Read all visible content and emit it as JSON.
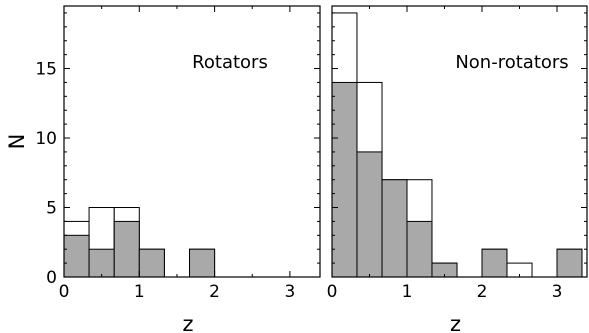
{
  "chart_data": [
    {
      "type": "bar",
      "title": "Rotators",
      "xlabel": "z",
      "ylabel": "N",
      "xlim": [
        0,
        3.4
      ],
      "ylim": [
        0,
        19.5
      ],
      "xticks": [
        "0",
        "1",
        "2",
        "3"
      ],
      "yticks": [
        "0",
        "5",
        "10",
        "15"
      ],
      "bin_edges": [
        0,
        0.333,
        0.667,
        1.0,
        1.333,
        1.667,
        2.0,
        2.333,
        2.667,
        3.0,
        3.333
      ],
      "series": [
        {
          "style": "outline",
          "values": [
            4,
            5,
            5,
            2,
            0,
            2,
            0,
            0,
            0,
            0
          ]
        },
        {
          "style": "filled",
          "color": "#a9a9a9",
          "values": [
            3,
            2,
            4,
            2,
            0,
            2,
            0,
            0,
            0,
            0
          ]
        }
      ],
      "grid": false
    },
    {
      "type": "bar",
      "title": "Non-rotators",
      "xlabel": "z",
      "ylabel": "",
      "xlim": [
        0,
        3.4
      ],
      "ylim": [
        0,
        19.5
      ],
      "xticks": [
        "0",
        "1",
        "2",
        "3"
      ],
      "yticks": [],
      "bin_edges": [
        0,
        0.333,
        0.667,
        1.0,
        1.333,
        1.667,
        2.0,
        2.333,
        2.667,
        3.0,
        3.333
      ],
      "series": [
        {
          "style": "outline",
          "values": [
            19,
            14,
            7,
            7,
            1,
            0,
            2,
            1,
            0,
            2
          ]
        },
        {
          "style": "filled",
          "color": "#a9a9a9",
          "values": [
            14,
            9,
            7,
            4,
            1,
            0,
            2,
            0,
            0,
            2
          ]
        }
      ],
      "grid": false
    }
  ]
}
